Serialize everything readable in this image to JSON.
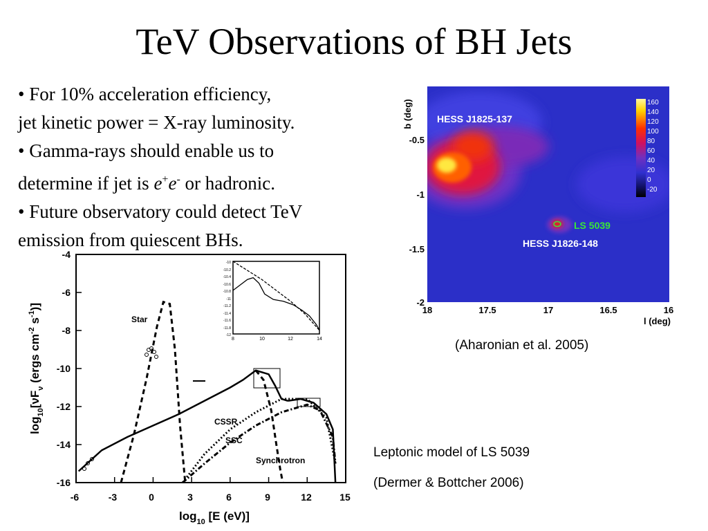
{
  "slide": {
    "title": "TeV Observations of BH Jets",
    "bullets": [
      {
        "text": "• For 10% acceleration efficiency,"
      },
      {
        "text": "jet kinetic power = X-ray luminosity."
      },
      {
        "text": "• Gamma-rays should enable us to"
      },
      {
        "pre": "determine if jet is ",
        "e1": "e",
        "sup1": "+",
        "e2": "e",
        "sup2": "-",
        "post": " or hadronic."
      },
      {
        "text": "• Future observatory could detect TeV"
      },
      {
        "text": "emission from quiescent BHs."
      }
    ],
    "captions": {
      "hess": "(Aharonian et al. 2005)",
      "model_line1": "Leptonic model of LS 5039",
      "model_line2": "(Dermer & Bottcher 2006)"
    }
  },
  "chart_data": [
    {
      "type": "heatmap",
      "ylabel": "b (deg)",
      "xlabel": "l (deg)",
      "x_ticks": [
        "18",
        "17.5",
        "17",
        "16.5",
        "16"
      ],
      "y_ticks": [
        "-0.5",
        "-1",
        "-1.5",
        "-2"
      ],
      "colorbar_ticks": [
        "160",
        "140",
        "120",
        "100",
        "80",
        "60",
        "40",
        "20",
        "0",
        "-20"
      ],
      "annotations": [
        "HESS J1825-137",
        "LS 5039",
        "HESS J1826-148"
      ],
      "colors": {
        "background": "#2b2fc8",
        "source_label_green": "#39e639"
      }
    },
    {
      "type": "line",
      "xlabel_main": "log",
      "xlabel_sub": "10",
      "xlabel_unit": " [E (eV)]",
      "ylabel_main": "log",
      "ylabel_sub": "10",
      "ylabel_rest": "[νF",
      "ylabel_nu": "ν",
      "ylabel_units": " (ergs cm",
      "ylabel_sup1": "-2",
      "ylabel_mid": " s",
      "ylabel_sup2": "-1",
      "ylabel_end": ")]",
      "xlim": [
        -6,
        15
      ],
      "ylim": [
        -16,
        -4
      ],
      "x_ticks": [
        "-6",
        "-3",
        "0",
        "3",
        "6",
        "9",
        "12",
        "15"
      ],
      "y_ticks": [
        "-4",
        "-6",
        "-8",
        "-10",
        "-12",
        "-14",
        "-16"
      ],
      "annotations": [
        "Star",
        "CSSR",
        "SSC",
        "Synchrotron"
      ],
      "series": [
        {
          "style": "dashed",
          "x": [
            -2.5,
            -1.5,
            -0.5,
            0.3,
            0.8,
            1.3,
            1.7,
            2.1,
            2.5
          ],
          "y": [
            -16,
            -13.5,
            -10.5,
            -7.8,
            -6.5,
            -6.6,
            -9,
            -13,
            -16
          ]
        },
        {
          "style": "solid",
          "x": [
            -5.8,
            -4,
            -2,
            0,
            2,
            4,
            6,
            7,
            8,
            9,
            9.5,
            10,
            10.5
          ],
          "y": [
            -15.4,
            -14.3,
            -13.6,
            -13,
            -12.4,
            -11.7,
            -11.0,
            -10.6,
            -10.1,
            -10.3,
            -10.9,
            -11.6,
            -11.7
          ]
        },
        {
          "style": "dashed",
          "x": [
            8,
            8.6,
            9.2,
            9.6,
            9.9,
            10.1
          ],
          "y": [
            -10.1,
            -10.6,
            -12.2,
            -14,
            -15.3,
            -16
          ]
        },
        {
          "style": "dotted",
          "x": [
            2.3,
            4,
            6,
            8,
            10,
            12,
            13.5,
            14.2
          ],
          "y": [
            -16,
            -14.5,
            -13.2,
            -12.3,
            -11.6,
            -11.6,
            -12.6,
            -15.0
          ]
        },
        {
          "style": "dashdot",
          "x": [
            2.3,
            4,
            6,
            8,
            10,
            12,
            13,
            14,
            14.2
          ],
          "y": [
            -16,
            -15.0,
            -13.9,
            -13.0,
            -12.3,
            -11.9,
            -12.2,
            -13.6,
            -15.0
          ]
        },
        {
          "style": "solid",
          "x": [
            10.5,
            11.5,
            12.5,
            13.5,
            14,
            14.2
          ],
          "y": [
            -11.7,
            -11.6,
            -11.8,
            -12.4,
            -13.2,
            -16
          ]
        }
      ],
      "inset": {
        "x_ticks": [
          "8",
          "10",
          "12",
          "14"
        ],
        "y_ticks": [
          "-10",
          "-10.2",
          "-10.4",
          "-10.6",
          "-10.8",
          "-11",
          "-11.2",
          "-11.4",
          "-11.6",
          "-11.8",
          "-12"
        ],
        "xlim": [
          8,
          14
        ],
        "ylim": [
          -12,
          -10
        ],
        "series": [
          {
            "style": "dashed",
            "x": [
              8,
              9,
              10,
              11,
              12,
              13,
              14
            ],
            "y": [
              -10,
              -10.25,
              -10.5,
              -10.8,
              -11.1,
              -11.45,
              -11.9
            ]
          },
          {
            "style": "solid",
            "x": [
              8,
              8.5,
              9,
              9.4,
              9.8,
              10.2,
              10.8,
              11.5,
              12.2,
              12.8,
              13.3,
              13.8,
              14
            ],
            "y": [
              -10.8,
              -10.65,
              -10.5,
              -10.45,
              -10.6,
              -10.9,
              -11.05,
              -11.1,
              -11.2,
              -11.35,
              -11.5,
              -11.75,
              -11.9
            ]
          }
        ]
      }
    }
  ]
}
